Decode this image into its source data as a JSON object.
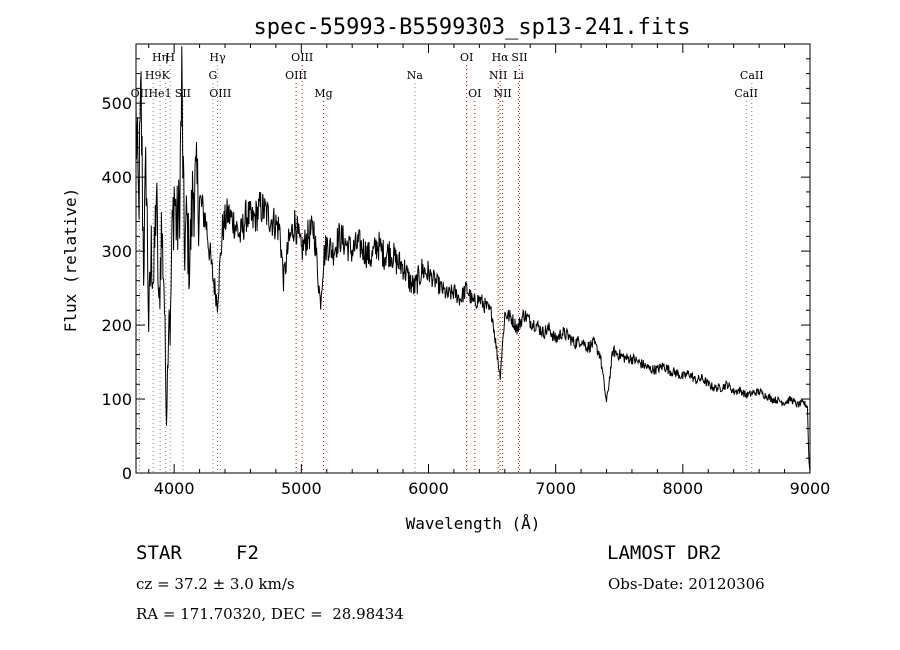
{
  "chart_data": {
    "type": "line",
    "title": "spec-55993-B5599303_sp13-241.fits",
    "xlabel": "Wavelength (Å)",
    "ylabel": "Flux (relative)",
    "xlim": [
      3700,
      9000
    ],
    "ylim": [
      0,
      580
    ],
    "x_ticks": [
      4000,
      5000,
      6000,
      7000,
      8000,
      9000
    ],
    "y_ticks": [
      0,
      100,
      200,
      300,
      400,
      500
    ],
    "grid": false,
    "series": [
      {
        "x": [
          3700,
          3720,
          3740,
          3760,
          3780,
          3800,
          3820,
          3840,
          3860,
          3880,
          3900,
          3920,
          3940,
          3960,
          3970,
          3980,
          4000,
          4020,
          4040,
          4060,
          4080,
          4100,
          4120,
          4150,
          4200,
          4250,
          4300,
          4340,
          4380,
          4420,
          4470,
          4520,
          4570,
          4620,
          4680,
          4730,
          4780,
          4830,
          4861,
          4900,
          4950,
          5000,
          5050,
          5100,
          5150,
          5175,
          5200,
          5250,
          5300,
          5350,
          5400,
          5450,
          5500,
          5550,
          5600,
          5650,
          5700,
          5750,
          5800,
          5850,
          5890,
          5950,
          6000,
          6050,
          6100,
          6150,
          6200,
          6250,
          6300,
          6350,
          6400,
          6450,
          6500,
          6563,
          6600,
          6650,
          6700,
          6750,
          6800,
          6850,
          6900,
          6950,
          7000,
          7050,
          7100,
          7150,
          7200,
          7250,
          7300,
          7350,
          7400,
          7450,
          7500,
          7550,
          7600,
          7650,
          7700,
          7750,
          7800,
          7850,
          7900,
          7950,
          8000,
          8050,
          8100,
          8150,
          8200,
          8250,
          8300,
          8350,
          8400,
          8450,
          8500,
          8550,
          8600,
          8650,
          8700,
          8750,
          8800,
          8850,
          8900,
          8950,
          8980,
          8990,
          9000
        ],
        "y": [
          480,
          360,
          500,
          280,
          420,
          200,
          300,
          260,
          380,
          210,
          330,
          260,
          70,
          240,
          180,
          300,
          380,
          330,
          350,
          520,
          300,
          340,
          280,
          390,
          370,
          340,
          270,
          230,
          330,
          350,
          340,
          320,
          350,
          340,
          360,
          350,
          340,
          330,
          260,
          310,
          340,
          300,
          320,
          330,
          230,
          290,
          310,
          300,
          320,
          310,
          300,
          310,
          300,
          290,
          310,
          295,
          300,
          285,
          280,
          260,
          250,
          275,
          270,
          260,
          250,
          240,
          245,
          235,
          250,
          230,
          235,
          225,
          215,
          130,
          215,
          210,
          195,
          215,
          205,
          200,
          190,
          195,
          180,
          190,
          185,
          175,
          180,
          170,
          175,
          160,
          95,
          165,
          160,
          155,
          155,
          150,
          145,
          140,
          140,
          145,
          138,
          135,
          130,
          135,
          125,
          128,
          120,
          115,
          115,
          120,
          110,
          112,
          105,
          108,
          110,
          105,
          100,
          98,
          95,
          100,
          92,
          95,
          90,
          20,
          0
        ]
      }
    ],
    "line_markers": [
      {
        "label": "OII",
        "x": 3727,
        "row": 3,
        "color": "#7f7f7f"
      },
      {
        "label": "H9",
        "x": 3835,
        "row": 2,
        "color": "#7f7f7f"
      },
      {
        "label": "Hη",
        "x": 3889,
        "row": 1,
        "color": "#7f7f7f"
      },
      {
        "label": "He1",
        "x": 3889,
        "row": 3,
        "color": "#7f7f7f"
      },
      {
        "label": "K",
        "x": 3934,
        "row": 2,
        "color": "#7f7f7f"
      },
      {
        "label": "H",
        "x": 3969,
        "row": 1,
        "color": "#7f7f7f"
      },
      {
        "label": "SII",
        "x": 4069,
        "row": 3,
        "color": "#7f7f7f"
      },
      {
        "label": "Hγ",
        "x": 4341,
        "row": 1,
        "color": "#7f7f7f"
      },
      {
        "label": "G",
        "x": 4305,
        "row": 2,
        "color": "#7f7f7f"
      },
      {
        "label": "OIII",
        "x": 4363,
        "row": 3,
        "color": "#7f7f7f"
      },
      {
        "label": "OIII",
        "x": 5007,
        "row": 1,
        "color": "#c00000"
      },
      {
        "label": "OIII",
        "x": 4959,
        "row": 2,
        "color": "#c00000"
      },
      {
        "label": "Mg",
        "x": 5175,
        "row": 3,
        "color": "#c00000"
      },
      {
        "label": "Na",
        "x": 5893,
        "row": 2,
        "color": "#7f7f7f"
      },
      {
        "label": "OI",
        "x": 6300,
        "row": 1,
        "color": "#c00000"
      },
      {
        "label": "OI",
        "x": 6364,
        "row": 3,
        "color": "#c00000"
      },
      {
        "label": "Hα",
        "x": 6563,
        "row": 1,
        "color": "#c00000"
      },
      {
        "label": "SII",
        "x": 6716,
        "row": 1,
        "color": "#c00000"
      },
      {
        "label": "NII",
        "x": 6548,
        "row": 2,
        "color": "#c00000"
      },
      {
        "label": "Li",
        "x": 6708,
        "row": 2,
        "color": "#c00000"
      },
      {
        "label": "NII",
        "x": 6583,
        "row": 3,
        "color": "#c00000"
      },
      {
        "label": "CaII",
        "x": 8542,
        "row": 2,
        "color": "#7f7f7f"
      },
      {
        "label": "CaII",
        "x": 8498,
        "row": 3,
        "color": "#7f7f7f"
      }
    ]
  },
  "info": {
    "class_label": "STAR",
    "subclass_label": "F2",
    "survey": "LAMOST DR2",
    "cz": "cz = 37.2 ± 3.0 km/s",
    "obs_date": "Obs-Date: 20120306",
    "coords": "RA = 171.70320, DEC =  28.98434"
  }
}
